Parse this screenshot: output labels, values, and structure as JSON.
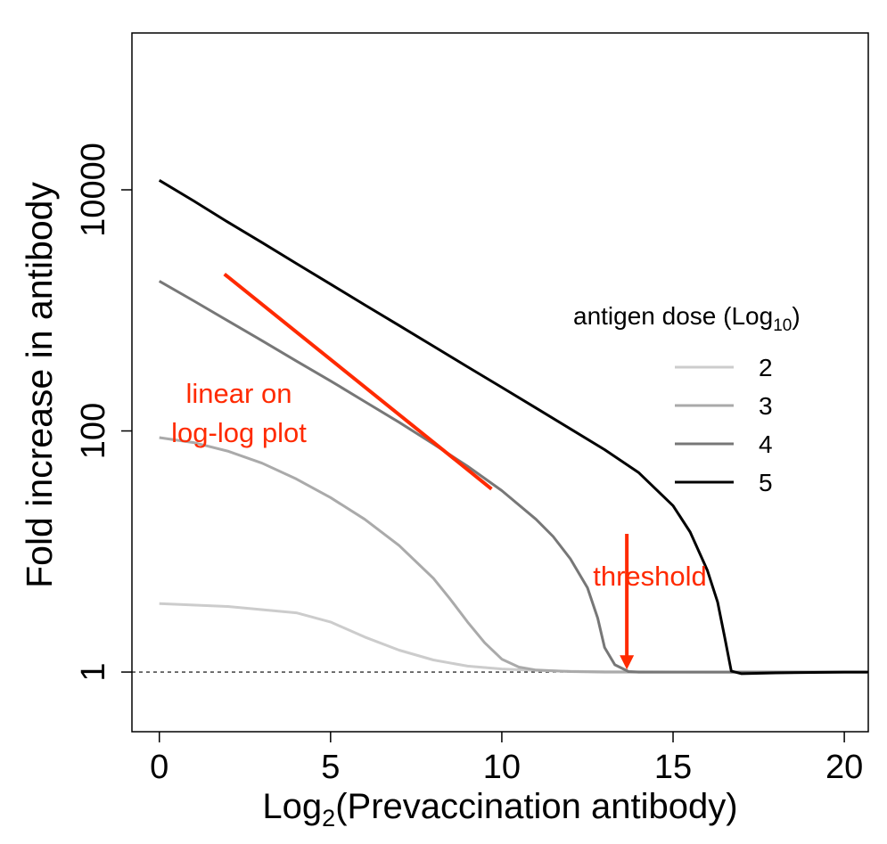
{
  "chart_data": {
    "type": "line",
    "xlabel_main": "Log",
    "xlabel_sub": "2",
    "xlabel_rest": "(Prevaccination antibody)",
    "ylabel": "Fold increase in antibody",
    "y_scale": "log10",
    "xlim": [
      -0.8,
      20.7
    ],
    "ylim": [
      0.32,
      200000
    ],
    "x_ticks": [
      0,
      5,
      10,
      15,
      20
    ],
    "x_tick_labels": [
      "0",
      "5",
      "10",
      "15",
      "20"
    ],
    "y_ticks": [
      1,
      100,
      10000
    ],
    "y_tick_labels": [
      "1",
      "100",
      "10000"
    ],
    "reference_line": {
      "y": 1,
      "style": "dashed"
    },
    "legend": {
      "title_main": "antigen dose (Log",
      "title_sub": "10",
      "title_end": ")",
      "placement": "right"
    },
    "series": [
      {
        "name": "2",
        "color": "#cccccc",
        "x": [
          0,
          2,
          4,
          5,
          6,
          7,
          8,
          9,
          10,
          11,
          12,
          13,
          14,
          16,
          18,
          20,
          20.7
        ],
        "y": [
          3.7,
          3.5,
          3.1,
          2.6,
          1.95,
          1.52,
          1.26,
          1.12,
          1.06,
          1.03,
          1.015,
          1.008,
          1.004,
          1.0,
          1.0,
          1.0,
          1.0
        ]
      },
      {
        "name": "3",
        "color": "#aaaaaa",
        "x": [
          0,
          1,
          2,
          3,
          4,
          5,
          6,
          7,
          8,
          8.5,
          9,
          9.5,
          10,
          10.5,
          11,
          12,
          13,
          14,
          16,
          20.7
        ],
        "y": [
          88,
          80,
          68,
          54,
          40,
          28,
          18.5,
          11.2,
          6.0,
          4.0,
          2.6,
          1.75,
          1.28,
          1.1,
          1.04,
          1.01,
          1.0,
          1.0,
          1.0,
          1.0
        ]
      },
      {
        "name": "4",
        "color": "#777777",
        "x": [
          0,
          1,
          2,
          3,
          4,
          5,
          6,
          7,
          8,
          9,
          10,
          11,
          11.5,
          12,
          12.5,
          12.8,
          13,
          13.3,
          13.7,
          14,
          16,
          20.7
        ],
        "y": [
          1750,
          1200,
          820,
          560,
          380,
          260,
          175,
          118,
          78,
          51,
          32,
          18.5,
          13.3,
          8.7,
          5.0,
          2.8,
          1.6,
          1.15,
          1.01,
          1.0,
          1.0,
          1.0
        ]
      },
      {
        "name": "5",
        "color": "#000000",
        "x": [
          0,
          1,
          2,
          3,
          4,
          5,
          6,
          7,
          8,
          9,
          10,
          11,
          12,
          13,
          14,
          15,
          15.5,
          16,
          16.3,
          16.5,
          16.7,
          17,
          18,
          20,
          20.7
        ],
        "y": [
          12000,
          8100,
          5400,
          3650,
          2450,
          1650,
          1110,
          750,
          505,
          340,
          230,
          155,
          104,
          70,
          45,
          24,
          14.5,
          7.0,
          3.8,
          2.0,
          1.02,
          0.97,
          0.985,
          1.0,
          1.0
        ]
      }
    ],
    "annotations": [
      {
        "kind": "line",
        "color": "#ff2a00",
        "label": "",
        "x": [
          1.9,
          9.7
        ],
        "y": [
          2000,
          33
        ]
      },
      {
        "kind": "text",
        "color": "#ff2a00",
        "lines": [
          "linear on",
          "log-log plot"
        ]
      },
      {
        "kind": "arrow",
        "color": "#ff2a00",
        "label": "threshold",
        "x": 13.65,
        "y_from": 14,
        "y_to": 1.05
      }
    ]
  }
}
